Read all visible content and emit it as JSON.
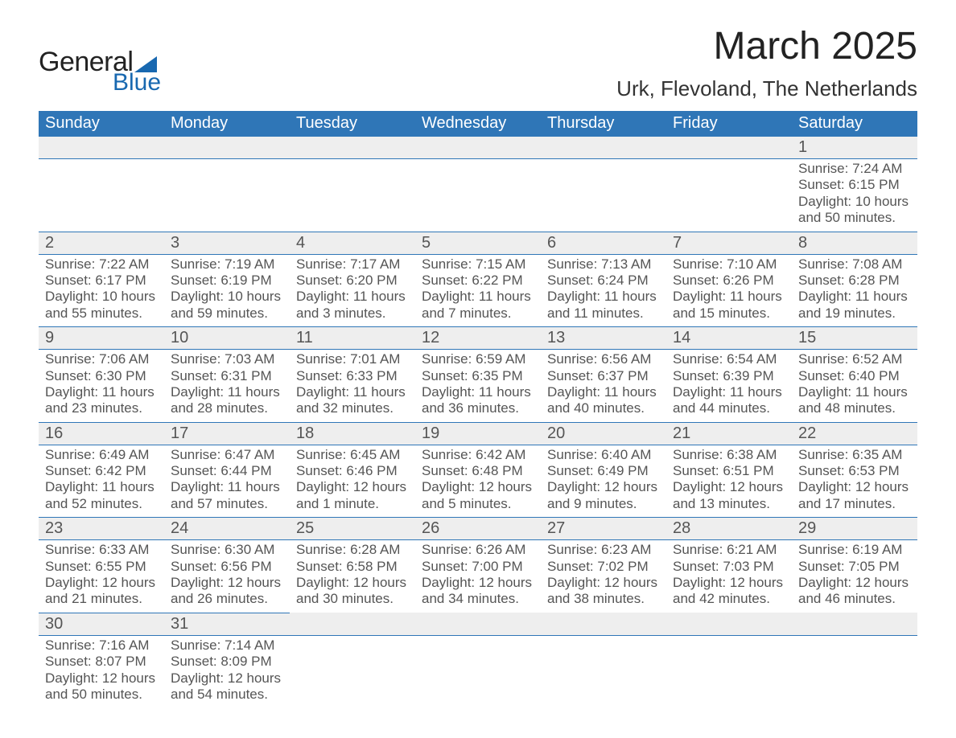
{
  "logo": {
    "word1": "General",
    "word2": "Blue",
    "accent_color": "#1868b0"
  },
  "title": {
    "month_year": "March 2025",
    "location": "Urk, Flevoland, The Netherlands"
  },
  "colors": {
    "header_bg": "#2f76b7",
    "header_text": "#ffffff",
    "daynum_bg": "#eeeeee",
    "border": "#2f76b7",
    "text": "#555555"
  },
  "day_labels": [
    "Sunday",
    "Monday",
    "Tuesday",
    "Wednesday",
    "Thursday",
    "Friday",
    "Saturday"
  ],
  "weeks": [
    [
      null,
      null,
      null,
      null,
      null,
      null,
      {
        "n": "1",
        "sr": "7:24 AM",
        "ss": "6:15 PM",
        "dl": "10 hours and 50 minutes."
      }
    ],
    [
      {
        "n": "2",
        "sr": "7:22 AM",
        "ss": "6:17 PM",
        "dl": "10 hours and 55 minutes."
      },
      {
        "n": "3",
        "sr": "7:19 AM",
        "ss": "6:19 PM",
        "dl": "10 hours and 59 minutes."
      },
      {
        "n": "4",
        "sr": "7:17 AM",
        "ss": "6:20 PM",
        "dl": "11 hours and 3 minutes."
      },
      {
        "n": "5",
        "sr": "7:15 AM",
        "ss": "6:22 PM",
        "dl": "11 hours and 7 minutes."
      },
      {
        "n": "6",
        "sr": "7:13 AM",
        "ss": "6:24 PM",
        "dl": "11 hours and 11 minutes."
      },
      {
        "n": "7",
        "sr": "7:10 AM",
        "ss": "6:26 PM",
        "dl": "11 hours and 15 minutes."
      },
      {
        "n": "8",
        "sr": "7:08 AM",
        "ss": "6:28 PM",
        "dl": "11 hours and 19 minutes."
      }
    ],
    [
      {
        "n": "9",
        "sr": "7:06 AM",
        "ss": "6:30 PM",
        "dl": "11 hours and 23 minutes."
      },
      {
        "n": "10",
        "sr": "7:03 AM",
        "ss": "6:31 PM",
        "dl": "11 hours and 28 minutes."
      },
      {
        "n": "11",
        "sr": "7:01 AM",
        "ss": "6:33 PM",
        "dl": "11 hours and 32 minutes."
      },
      {
        "n": "12",
        "sr": "6:59 AM",
        "ss": "6:35 PM",
        "dl": "11 hours and 36 minutes."
      },
      {
        "n": "13",
        "sr": "6:56 AM",
        "ss": "6:37 PM",
        "dl": "11 hours and 40 minutes."
      },
      {
        "n": "14",
        "sr": "6:54 AM",
        "ss": "6:39 PM",
        "dl": "11 hours and 44 minutes."
      },
      {
        "n": "15",
        "sr": "6:52 AM",
        "ss": "6:40 PM",
        "dl": "11 hours and 48 minutes."
      }
    ],
    [
      {
        "n": "16",
        "sr": "6:49 AM",
        "ss": "6:42 PM",
        "dl": "11 hours and 52 minutes."
      },
      {
        "n": "17",
        "sr": "6:47 AM",
        "ss": "6:44 PM",
        "dl": "11 hours and 57 minutes."
      },
      {
        "n": "18",
        "sr": "6:45 AM",
        "ss": "6:46 PM",
        "dl": "12 hours and 1 minute."
      },
      {
        "n": "19",
        "sr": "6:42 AM",
        "ss": "6:48 PM",
        "dl": "12 hours and 5 minutes."
      },
      {
        "n": "20",
        "sr": "6:40 AM",
        "ss": "6:49 PM",
        "dl": "12 hours and 9 minutes."
      },
      {
        "n": "21",
        "sr": "6:38 AM",
        "ss": "6:51 PM",
        "dl": "12 hours and 13 minutes."
      },
      {
        "n": "22",
        "sr": "6:35 AM",
        "ss": "6:53 PM",
        "dl": "12 hours and 17 minutes."
      }
    ],
    [
      {
        "n": "23",
        "sr": "6:33 AM",
        "ss": "6:55 PM",
        "dl": "12 hours and 21 minutes."
      },
      {
        "n": "24",
        "sr": "6:30 AM",
        "ss": "6:56 PM",
        "dl": "12 hours and 26 minutes."
      },
      {
        "n": "25",
        "sr": "6:28 AM",
        "ss": "6:58 PM",
        "dl": "12 hours and 30 minutes."
      },
      {
        "n": "26",
        "sr": "6:26 AM",
        "ss": "7:00 PM",
        "dl": "12 hours and 34 minutes."
      },
      {
        "n": "27",
        "sr": "6:23 AM",
        "ss": "7:02 PM",
        "dl": "12 hours and 38 minutes."
      },
      {
        "n": "28",
        "sr": "6:21 AM",
        "ss": "7:03 PM",
        "dl": "12 hours and 42 minutes."
      },
      {
        "n": "29",
        "sr": "6:19 AM",
        "ss": "7:05 PM",
        "dl": "12 hours and 46 minutes."
      }
    ],
    [
      {
        "n": "30",
        "sr": "7:16 AM",
        "ss": "8:07 PM",
        "dl": "12 hours and 50 minutes."
      },
      {
        "n": "31",
        "sr": "7:14 AM",
        "ss": "8:09 PM",
        "dl": "12 hours and 54 minutes."
      },
      null,
      null,
      null,
      null,
      null
    ]
  ],
  "labels": {
    "sunrise": "Sunrise:",
    "sunset": "Sunset:",
    "daylight": "Daylight:"
  }
}
